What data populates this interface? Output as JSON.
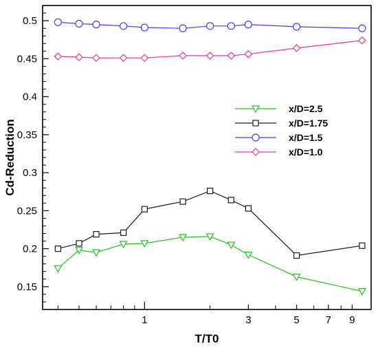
{
  "chart_data": {
    "type": "line",
    "title": "",
    "xlabel": "T/T0",
    "ylabel": "Cd-Reduction",
    "x_scale": "log",
    "xlim": [
      0.34,
      11
    ],
    "ylim": [
      0.12,
      0.52
    ],
    "x_ticks": [
      {
        "value": 1,
        "label": "1"
      },
      {
        "value": 3,
        "label": "3"
      },
      {
        "value": 5,
        "label": "5"
      },
      {
        "value": 7,
        "label": "7"
      },
      {
        "value": 9,
        "label": "9"
      }
    ],
    "y_ticks": [
      {
        "value": 0.15,
        "label": "0.15"
      },
      {
        "value": 0.2,
        "label": "0.2"
      },
      {
        "value": 0.25,
        "label": "0.25"
      },
      {
        "value": 0.3,
        "label": "0.3"
      },
      {
        "value": 0.35,
        "label": "0.35"
      },
      {
        "value": 0.4,
        "label": "0.4"
      },
      {
        "value": 0.45,
        "label": "0.45"
      },
      {
        "value": 0.5,
        "label": "0.5"
      }
    ],
    "grid": false,
    "legend_position": "center-right",
    "series": [
      {
        "name": "x/D=2.5",
        "color": "#22c41c",
        "marker": "triangle-down",
        "x": [
          0.4,
          0.5,
          0.6,
          0.8,
          1.0,
          1.5,
          2.0,
          2.5,
          3.0,
          5.0,
          10.0
        ],
        "y": [
          0.174,
          0.198,
          0.195,
          0.206,
          0.207,
          0.215,
          0.216,
          0.205,
          0.192,
          0.163,
          0.144
        ]
      },
      {
        "name": "x/D=1.75",
        "color": "#1a1a1a",
        "marker": "square",
        "x": [
          0.4,
          0.5,
          0.6,
          0.8,
          1.0,
          1.5,
          2.0,
          2.5,
          3.0,
          5.0,
          10.0
        ],
        "y": [
          0.2,
          0.207,
          0.219,
          0.221,
          0.252,
          0.262,
          0.276,
          0.264,
          0.253,
          0.191,
          0.204
        ]
      },
      {
        "name": "x/D=1.5",
        "color": "#3f3ff0",
        "marker": "circle",
        "x": [
          0.4,
          0.5,
          0.6,
          0.8,
          1.0,
          1.5,
          2.0,
          2.5,
          3.0,
          5.0,
          10.0
        ],
        "y": [
          0.498,
          0.496,
          0.495,
          0.493,
          0.491,
          0.49,
          0.493,
          0.493,
          0.495,
          0.492,
          0.49
        ]
      },
      {
        "name": "x/D=1.0",
        "color": "#e8388e",
        "marker": "diamond",
        "x": [
          0.4,
          0.5,
          0.6,
          0.8,
          1.0,
          1.5,
          2.0,
          2.5,
          3.0,
          5.0,
          10.0
        ],
        "y": [
          0.453,
          0.452,
          0.451,
          0.451,
          0.451,
          0.454,
          0.454,
          0.454,
          0.456,
          0.464,
          0.474
        ]
      }
    ]
  }
}
